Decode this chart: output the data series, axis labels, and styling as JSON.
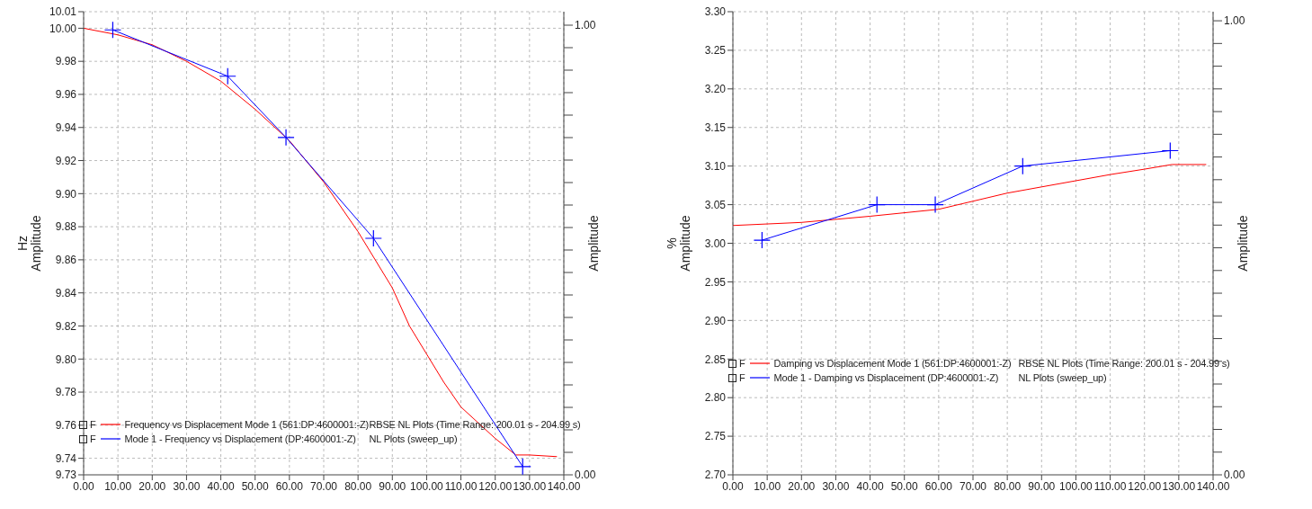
{
  "chart_data": [
    {
      "type": "line",
      "xlim": [
        0,
        140
      ],
      "xticks": [
        {
          "value": 0,
          "label": "0.00"
        },
        {
          "value": 10,
          "label": "10.00"
        },
        {
          "value": 20,
          "label": "20.00"
        },
        {
          "value": 30,
          "label": "30.00"
        },
        {
          "value": 40,
          "label": "40.00"
        },
        {
          "value": 50,
          "label": "50.00"
        },
        {
          "value": 60,
          "label": "60.00"
        },
        {
          "value": 70,
          "label": "70.00"
        },
        {
          "value": 80,
          "label": "80.00"
        },
        {
          "value": 90,
          "label": "90.00"
        },
        {
          "value": 100,
          "label": "100.00"
        },
        {
          "value": 110,
          "label": "110.00"
        },
        {
          "value": 120,
          "label": "120.00"
        },
        {
          "value": 130,
          "label": "130.00"
        },
        {
          "value": 140,
          "label": "140.00"
        }
      ],
      "ylim": [
        9.73,
        10.01
      ],
      "yticks": [
        {
          "value": 9.73,
          "label": "9.73"
        },
        {
          "value": 9.74,
          "label": "9.74"
        },
        {
          "value": 9.76,
          "label": "9.76"
        },
        {
          "value": 9.78,
          "label": "9.78"
        },
        {
          "value": 9.8,
          "label": "9.80"
        },
        {
          "value": 9.82,
          "label": "9.82"
        },
        {
          "value": 9.84,
          "label": "9.84"
        },
        {
          "value": 9.86,
          "label": "9.86"
        },
        {
          "value": 9.88,
          "label": "9.88"
        },
        {
          "value": 9.9,
          "label": "9.90"
        },
        {
          "value": 9.92,
          "label": "9.92"
        },
        {
          "value": 9.94,
          "label": "9.94"
        },
        {
          "value": 9.96,
          "label": "9.96"
        },
        {
          "value": 9.98,
          "label": "9.98"
        },
        {
          "value": 10,
          "label": "10.00"
        },
        {
          "value": 10.01,
          "label": "10.01"
        }
      ],
      "y2lim": [
        0,
        1.03
      ],
      "y2ticks": [
        {
          "value": 0,
          "label": "0.00"
        },
        {
          "value": 0.05,
          "label": null
        },
        {
          "value": 0.1,
          "label": null
        },
        {
          "value": 0.15,
          "label": null
        },
        {
          "value": 0.2,
          "label": null
        },
        {
          "value": 0.25,
          "label": null
        },
        {
          "value": 0.3,
          "label": null
        },
        {
          "value": 0.35,
          "label": null
        },
        {
          "value": 0.4,
          "label": null
        },
        {
          "value": 0.45,
          "label": null
        },
        {
          "value": 0.5,
          "label": null
        },
        {
          "value": 0.55,
          "label": null
        },
        {
          "value": 0.6,
          "label": null
        },
        {
          "value": 0.65,
          "label": null
        },
        {
          "value": 0.7,
          "label": null
        },
        {
          "value": 0.75,
          "label": null
        },
        {
          "value": 0.8,
          "label": null
        },
        {
          "value": 0.85,
          "label": null
        },
        {
          "value": 0.9,
          "label": null
        },
        {
          "value": 0.95,
          "label": null
        },
        {
          "value": 1,
          "label": "1.00"
        }
      ],
      "ylabel": "Hz\nAmplitude",
      "y2label": "Amplitude",
      "grid": true,
      "legend": "bottom left",
      "line_style": "solid",
      "annotations": [
        "F",
        "RBSE NL Plots (Time Range: 200.01 s - 204.99 s)",
        "F",
        "NL Plots (sweep_up)"
      ],
      "series": [
        {
          "name": "Frequency vs Displacement Mode 1 (561:DP:4600001:-Z)",
          "color": "#ff0000",
          "marker": "none",
          "x": [
            0,
            10,
            20,
            30,
            40,
            50,
            60,
            70,
            80,
            90,
            95,
            100,
            105,
            110,
            120,
            126,
            130,
            138
          ],
          "values": [
            10.0,
            9.996,
            9.99,
            9.98,
            9.968,
            9.951,
            9.932,
            9.907,
            9.877,
            9.843,
            9.82,
            9.803,
            9.786,
            9.771,
            9.752,
            9.742,
            9.742,
            9.741
          ]
        },
        {
          "name": "Mode 1 - Frequency vs Displacement (DP:4600001:-Z)",
          "color": "#0000ff",
          "marker": "cross",
          "x": [
            8.5,
            42,
            59,
            84.5,
            128
          ],
          "values": [
            9.999,
            9.971,
            9.934,
            9.873,
            9.735
          ]
        }
      ]
    },
    {
      "type": "line",
      "xlim": [
        0,
        140
      ],
      "xticks": [
        {
          "value": 0,
          "label": "0.00"
        },
        {
          "value": 10,
          "label": "10.00"
        },
        {
          "value": 20,
          "label": "20.00"
        },
        {
          "value": 30,
          "label": "30.00"
        },
        {
          "value": 40,
          "label": "40.00"
        },
        {
          "value": 50,
          "label": "50.00"
        },
        {
          "value": 60,
          "label": "60.00"
        },
        {
          "value": 70,
          "label": "70.00"
        },
        {
          "value": 80,
          "label": "80.00"
        },
        {
          "value": 90,
          "label": "90.00"
        },
        {
          "value": 100,
          "label": "100.00"
        },
        {
          "value": 110,
          "label": "110.00"
        },
        {
          "value": 120,
          "label": "120.00"
        },
        {
          "value": 130,
          "label": "130.00"
        },
        {
          "value": 140,
          "label": "140.00"
        }
      ],
      "ylim": [
        2.7,
        3.3
      ],
      "yticks": [
        {
          "value": 2.7,
          "label": "2.70"
        },
        {
          "value": 2.75,
          "label": "2.75"
        },
        {
          "value": 2.8,
          "label": "2.80"
        },
        {
          "value": 2.85,
          "label": "2.85"
        },
        {
          "value": 2.9,
          "label": "2.90"
        },
        {
          "value": 2.95,
          "label": "2.95"
        },
        {
          "value": 3,
          "label": "3.00"
        },
        {
          "value": 3.05,
          "label": "3.05"
        },
        {
          "value": 3.1,
          "label": "3.10"
        },
        {
          "value": 3.15,
          "label": "3.15"
        },
        {
          "value": 3.2,
          "label": "3.20"
        },
        {
          "value": 3.25,
          "label": "3.25"
        },
        {
          "value": 3.3,
          "label": "3.30"
        }
      ],
      "y2lim": [
        0,
        1.02
      ],
      "y2ticks": [
        {
          "value": 0,
          "label": "0.00"
        },
        {
          "value": 0.05,
          "label": null
        },
        {
          "value": 0.1,
          "label": null
        },
        {
          "value": 0.15,
          "label": null
        },
        {
          "value": 0.2,
          "label": null
        },
        {
          "value": 0.25,
          "label": null
        },
        {
          "value": 0.3,
          "label": null
        },
        {
          "value": 0.35,
          "label": null
        },
        {
          "value": 0.4,
          "label": null
        },
        {
          "value": 0.45,
          "label": null
        },
        {
          "value": 0.5,
          "label": null
        },
        {
          "value": 0.55,
          "label": null
        },
        {
          "value": 0.6,
          "label": null
        },
        {
          "value": 0.65,
          "label": null
        },
        {
          "value": 0.7,
          "label": null
        },
        {
          "value": 0.75,
          "label": null
        },
        {
          "value": 0.8,
          "label": null
        },
        {
          "value": 0.85,
          "label": null
        },
        {
          "value": 0.9,
          "label": null
        },
        {
          "value": 0.95,
          "label": null
        },
        {
          "value": 1,
          "label": "1.00"
        }
      ],
      "ylabel": "%\nAmplitude",
      "y2label": "Amplitude",
      "grid": true,
      "legend": "left",
      "line_style": "solid",
      "annotations": [
        "F",
        "RBSE NL Plots (Time Range: 200.01 s - 204.99 s)",
        "F",
        "NL Plots (sweep_up)"
      ],
      "series": [
        {
          "name": "Damping vs Displacement Mode 1 (561:DP:4600001:-Z)",
          "color": "#ff0000",
          "marker": "none",
          "x": [
            0,
            20,
            40,
            60,
            80,
            90,
            100,
            110,
            120,
            128,
            138
          ],
          "values": [
            3.023,
            3.027,
            3.035,
            3.044,
            3.065,
            3.073,
            3.081,
            3.089,
            3.096,
            3.102,
            3.102
          ]
        },
        {
          "name": "Mode 1 - Damping vs Displacement (DP:4600001:-Z)",
          "color": "#0000ff",
          "marker": "cross",
          "x": [
            8.5,
            42,
            59,
            84.5,
            127.5
          ],
          "values": [
            3.004,
            3.05,
            3.05,
            3.1,
            3.12
          ]
        }
      ]
    }
  ]
}
